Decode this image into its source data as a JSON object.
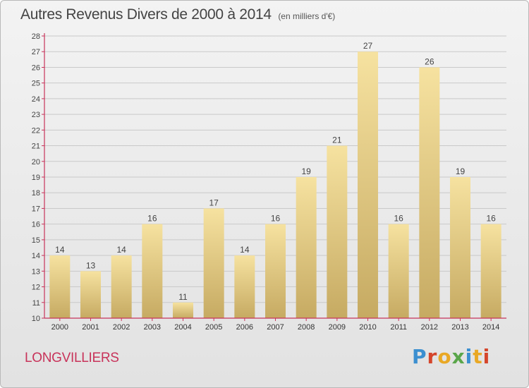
{
  "header": {
    "title": "Autres Revenus Divers de 2000 à 2014",
    "subtitle": "(en milliers d'€)"
  },
  "footer": {
    "commune": "LONGVILLIERS",
    "logo_text": "Proxiti"
  },
  "colors": {
    "bar_top": "#f6e2a0",
    "bar_bottom": "#c6aa62",
    "axis": "#c8335a",
    "grid": "#c9c9c9",
    "logo": [
      "#3b8fd0",
      "#d5452b",
      "#e9a825",
      "#5aa64a",
      "#3b8fd0",
      "#e9a825",
      "#d5452b"
    ]
  },
  "chart_data": {
    "type": "bar",
    "categories": [
      "2000",
      "2001",
      "2002",
      "2003",
      "2004",
      "2005",
      "2006",
      "2007",
      "2008",
      "2009",
      "2010",
      "2011",
      "2012",
      "2013",
      "2014"
    ],
    "values": [
      14,
      13,
      14,
      16,
      11,
      17,
      14,
      16,
      19,
      21,
      27,
      16,
      26,
      19,
      16
    ],
    "title": "Autres Revenus Divers de 2000 à 2014",
    "subtitle": "(en milliers d'€)",
    "ylim": [
      10,
      28
    ],
    "yticks": [
      10,
      11,
      12,
      13,
      14,
      15,
      16,
      17,
      18,
      19,
      20,
      21,
      22,
      23,
      24,
      25,
      26,
      27,
      28
    ],
    "grid": true,
    "data_labels": true
  }
}
